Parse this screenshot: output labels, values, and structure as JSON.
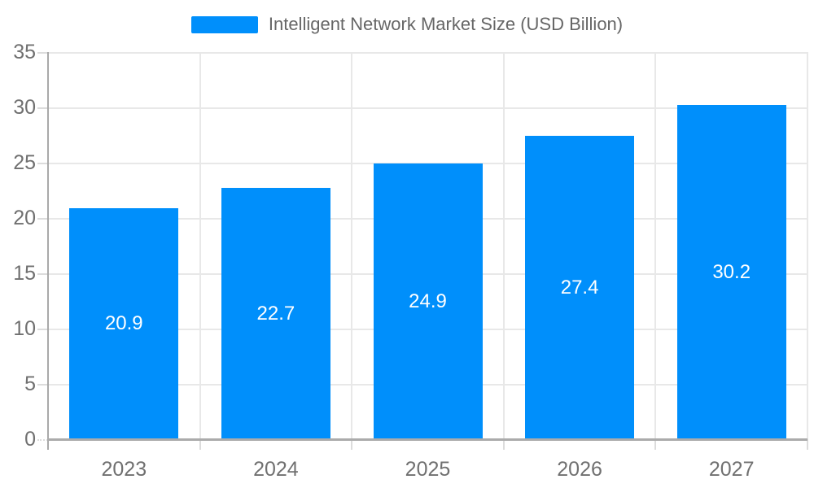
{
  "legend": {
    "series_label": "Intelligent Network Market Size (USD Billion)",
    "swatch_color": "#008FFB",
    "position": "top"
  },
  "chart_data": {
    "type": "bar",
    "title": "Intelligent Network Market Size (USD Billion)",
    "categories": [
      "2023",
      "2024",
      "2025",
      "2026",
      "2027"
    ],
    "values": [
      20.9,
      22.7,
      24.9,
      27.4,
      30.2
    ],
    "value_labels": [
      "20.9",
      "22.7",
      "24.9",
      "27.4",
      "30.2"
    ],
    "xlabel": "",
    "ylabel": "",
    "ylim": [
      0,
      35
    ],
    "ytick_step": 5,
    "ytick_labels": [
      "0",
      "5",
      "10",
      "15",
      "20",
      "25",
      "30",
      "35"
    ],
    "grid": true,
    "legend_position": "top",
    "bar_color": "#008FFB",
    "value_label_color": "#FFFFFF",
    "axis_text_color": "#707070"
  }
}
